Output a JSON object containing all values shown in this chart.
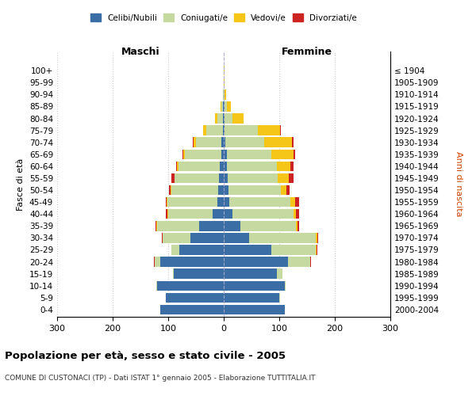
{
  "age_groups": [
    "0-4",
    "5-9",
    "10-14",
    "15-19",
    "20-24",
    "25-29",
    "30-34",
    "35-39",
    "40-44",
    "45-49",
    "50-54",
    "55-59",
    "60-64",
    "65-69",
    "70-74",
    "75-79",
    "80-84",
    "85-89",
    "90-94",
    "95-99",
    "100+"
  ],
  "birth_years": [
    "2000-2004",
    "1995-1999",
    "1990-1994",
    "1985-1989",
    "1980-1984",
    "1975-1979",
    "1970-1974",
    "1965-1969",
    "1960-1964",
    "1955-1959",
    "1950-1954",
    "1945-1949",
    "1940-1944",
    "1935-1939",
    "1930-1934",
    "1925-1929",
    "1920-1924",
    "1915-1919",
    "1910-1914",
    "1905-1909",
    "≤ 1904"
  ],
  "colors": {
    "celibi": "#3a6ea5",
    "coniugati": "#c5d9a0",
    "vedovi": "#f5c518",
    "divorziati": "#cc2222"
  },
  "maschi": {
    "celibi": [
      115,
      105,
      120,
      90,
      115,
      80,
      60,
      45,
      20,
      12,
      10,
      8,
      7,
      5,
      5,
      2,
      1,
      1,
      0,
      0,
      0
    ],
    "coniugati": [
      0,
      0,
      1,
      2,
      10,
      15,
      50,
      75,
      80,
      90,
      85,
      80,
      75,
      65,
      45,
      30,
      10,
      3,
      1,
      0,
      0
    ],
    "vedovi": [
      0,
      0,
      0,
      0,
      0,
      0,
      0,
      1,
      1,
      1,
      1,
      1,
      2,
      3,
      5,
      5,
      5,
      2,
      1,
      0,
      0
    ],
    "divorziati": [
      0,
      0,
      0,
      0,
      1,
      0,
      2,
      2,
      3,
      2,
      3,
      5,
      2,
      1,
      1,
      0,
      0,
      0,
      0,
      0,
      0
    ]
  },
  "femmine": {
    "nubili": [
      110,
      100,
      110,
      95,
      115,
      85,
      45,
      30,
      15,
      10,
      8,
      7,
      5,
      5,
      3,
      2,
      1,
      1,
      0,
      0,
      0
    ],
    "coniugate": [
      0,
      1,
      2,
      10,
      40,
      80,
      120,
      100,
      110,
      110,
      95,
      90,
      90,
      80,
      70,
      60,
      15,
      4,
      1,
      0,
      0
    ],
    "vedove": [
      0,
      0,
      0,
      0,
      1,
      2,
      3,
      3,
      5,
      8,
      10,
      20,
      25,
      40,
      50,
      40,
      20,
      8,
      3,
      1,
      1
    ],
    "divorziate": [
      0,
      0,
      0,
      0,
      1,
      1,
      2,
      3,
      5,
      8,
      5,
      8,
      5,
      3,
      2,
      1,
      0,
      0,
      0,
      0,
      0
    ]
  },
  "xlim": 300,
  "title": "Popolazione per età, sesso e stato civile - 2005",
  "subtitle": "COMUNE DI CUSTONACI (TP) - Dati ISTAT 1° gennaio 2005 - Elaborazione TUTTITALIA.IT",
  "xlabel_left": "Maschi",
  "xlabel_right": "Femmine",
  "ylabel_left": "Fasce di età",
  "ylabel_right": "Anni di nascita",
  "legend_labels": [
    "Celibi/Nubili",
    "Coniugati/e",
    "Vedovi/e",
    "Divorziati/e"
  ],
  "background_color": "#ffffff",
  "grid_color": "#cccccc"
}
